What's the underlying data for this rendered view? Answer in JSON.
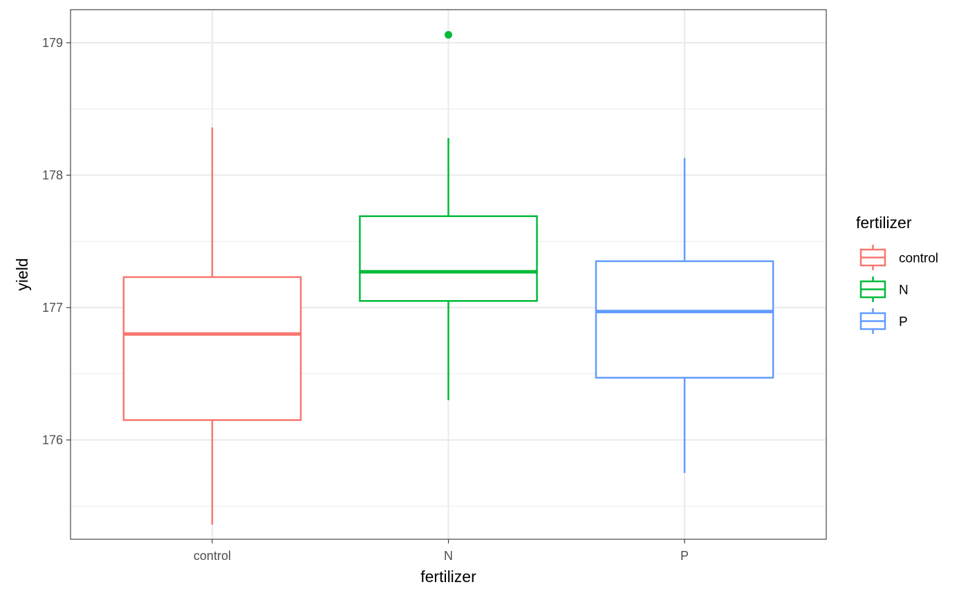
{
  "chart_data": {
    "type": "boxplot",
    "xlabel": "fertilizer",
    "ylabel": "yield",
    "categories": [
      "control",
      "N",
      "P"
    ],
    "ylim": [
      175.25,
      179.25
    ],
    "yticks": [
      176,
      177,
      178,
      179
    ],
    "ytick_labels": [
      "176",
      "177",
      "178",
      "179"
    ],
    "grid": true,
    "legend": {
      "title": "fertilizer",
      "position": "right",
      "items": [
        "control",
        "N",
        "P"
      ]
    },
    "series": [
      {
        "name": "control",
        "color": "#F8766D",
        "whisker_low": 175.36,
        "q1": 176.15,
        "median": 176.8,
        "q3": 177.23,
        "whisker_high": 178.36,
        "outliers": []
      },
      {
        "name": "N",
        "color": "#00BA38",
        "whisker_low": 176.3,
        "q1": 177.05,
        "median": 177.27,
        "q3": 177.69,
        "whisker_high": 178.28,
        "outliers": [
          179.06
        ]
      },
      {
        "name": "P",
        "color": "#619CFF",
        "whisker_low": 175.75,
        "q1": 176.47,
        "median": 176.97,
        "q3": 177.35,
        "whisker_high": 178.13,
        "outliers": []
      }
    ]
  }
}
